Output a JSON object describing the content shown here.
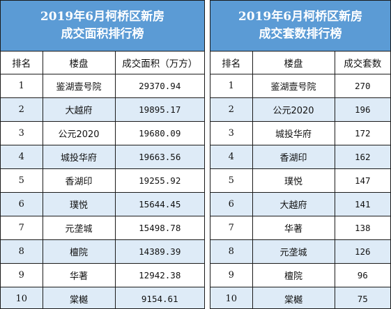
{
  "left": {
    "title_line1": "2019年6月柯桥区新房",
    "title_line2": "成交面积排行榜",
    "headers": [
      "排名",
      "楼盘",
      "成交面积（万方）"
    ],
    "rows": [
      {
        "rank": "1",
        "name": "鉴湖壹号院",
        "value": "29370.94"
      },
      {
        "rank": "2",
        "name": "大越府",
        "value": "19895.17"
      },
      {
        "rank": "3",
        "name": "公元2020",
        "value": "19680.09"
      },
      {
        "rank": "4",
        "name": "城投华府",
        "value": "19663.56"
      },
      {
        "rank": "5",
        "name": "香湖印",
        "value": "19255.92"
      },
      {
        "rank": "6",
        "name": "璞悦",
        "value": "15644.45"
      },
      {
        "rank": "7",
        "name": "元垄城",
        "value": "15498.78"
      },
      {
        "rank": "8",
        "name": "檀院",
        "value": "14389.39"
      },
      {
        "rank": "9",
        "name": "华著",
        "value": "12942.38"
      },
      {
        "rank": "10",
        "name": "棠樾",
        "value": "9154.61"
      }
    ]
  },
  "right": {
    "title_line1": "2019年6月柯桥区新房",
    "title_line2": "成交套数排行榜",
    "headers": [
      "排名",
      "楼盘",
      "成交套数"
    ],
    "rows": [
      {
        "rank": "1",
        "name": "鉴湖壹号院",
        "value": "270"
      },
      {
        "rank": "2",
        "name": "公元2020",
        "value": "196"
      },
      {
        "rank": "3",
        "name": "城投华府",
        "value": "172"
      },
      {
        "rank": "4",
        "name": "香湖印",
        "value": "162"
      },
      {
        "rank": "5",
        "name": "璞悦",
        "value": "147"
      },
      {
        "rank": "6",
        "name": "大越府",
        "value": "141"
      },
      {
        "rank": "7",
        "name": "华著",
        "value": "138"
      },
      {
        "rank": "8",
        "name": "元垄城",
        "value": "126"
      },
      {
        "rank": "9",
        "name": "檀院",
        "value": "96"
      },
      {
        "rank": "10",
        "name": "棠樾",
        "value": "75"
      }
    ]
  },
  "colors": {
    "title_bg": "#5b9bd5",
    "alt_row_bg": "#deebf7",
    "border": "#1a1a1a"
  }
}
